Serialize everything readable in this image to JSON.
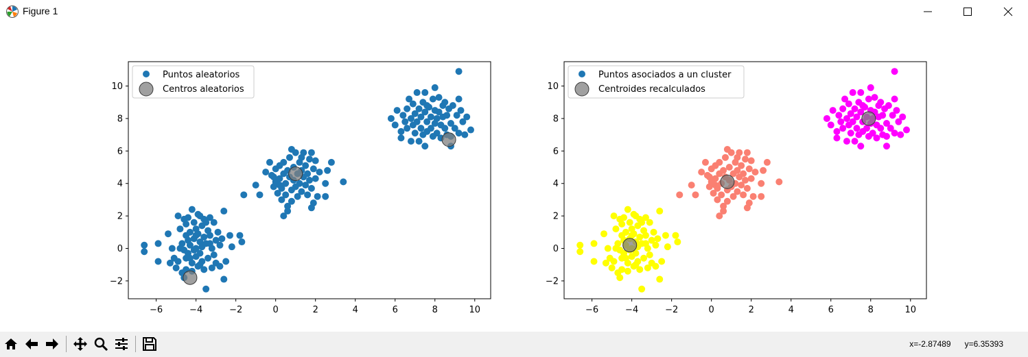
{
  "window": {
    "title": "Figure 1",
    "icons": {
      "app": "matplotlib-icon",
      "minimize": "minimize-icon",
      "maximize": "maximize-icon",
      "close": "close-icon"
    }
  },
  "toolbar": {
    "buttons": [
      "home-icon",
      "back-arrow-icon",
      "forward-arrow-icon",
      "pan-icon",
      "zoom-icon",
      "subplots-icon",
      "save-icon"
    ],
    "x_coord": "x=-2.87489",
    "y_coord": "y=6.35393"
  },
  "colors": {
    "scatter_default": "#1f77b4",
    "centers": "#808080",
    "cluster_a": "#ffff00",
    "cluster_b": "#fa8072",
    "cluster_c": "#ff00ff"
  },
  "chart_data": [
    {
      "type": "scatter",
      "title": "",
      "xlabel": "",
      "ylabel": "",
      "xlim": [
        -7.4,
        10.8
      ],
      "ylim": [
        -3.1,
        11.5
      ],
      "xticks": [
        -6,
        -4,
        -2,
        0,
        2,
        4,
        6,
        8,
        10
      ],
      "yticks": [
        -2,
        0,
        2,
        4,
        6,
        8,
        10
      ],
      "xtick_labels": [
        "−6",
        "−4",
        "−2",
        "0",
        "2",
        "4",
        "6",
        "8",
        "10"
      ],
      "ytick_labels": [
        "−2",
        "0",
        "2",
        "4",
        "6",
        "8",
        "10"
      ],
      "legend": {
        "placement": "upper-left",
        "entries": [
          "Puntos aleatorios",
          "Centros aleatorios"
        ]
      },
      "series": [
        {
          "name": "Puntos aleatorios",
          "color": "#1f77b4",
          "points": [
            [
              -6.6,
              0.2
            ],
            [
              -6.6,
              -0.2
            ],
            [
              -5.9,
              0.3
            ],
            [
              -5.9,
              -0.8
            ],
            [
              -5.4,
              0.9
            ],
            [
              -5.1,
              -0.6
            ],
            [
              -5.0,
              -1.2
            ],
            [
              -4.9,
              -0.8
            ],
            [
              -4.8,
              0.0
            ],
            [
              -4.7,
              0.3
            ],
            [
              -4.6,
              -0.1
            ],
            [
              -4.6,
              -1.8
            ],
            [
              -4.5,
              1.5
            ],
            [
              -4.5,
              0.8
            ],
            [
              -4.5,
              -0.6
            ],
            [
              -4.5,
              -1.3
            ],
            [
              -4.4,
              0.5
            ],
            [
              -4.4,
              -0.3
            ],
            [
              -4.3,
              1.0
            ],
            [
              -4.3,
              0.2
            ],
            [
              -4.2,
              2.4
            ],
            [
              -4.2,
              -0.9
            ],
            [
              -4.2,
              -1.4
            ],
            [
              -4.1,
              1.6
            ],
            [
              -4.1,
              0.6
            ],
            [
              -4.1,
              -0.1
            ],
            [
              -4.0,
              1.2
            ],
            [
              -4.0,
              0.0
            ],
            [
              -4.0,
              -0.5
            ],
            [
              -3.9,
              0.9
            ],
            [
              -3.9,
              -1.1
            ],
            [
              -3.8,
              2.0
            ],
            [
              -3.8,
              0.4
            ],
            [
              -3.8,
              -0.3
            ],
            [
              -3.7,
              1.4
            ],
            [
              -3.7,
              0.1
            ],
            [
              -3.7,
              -0.8
            ],
            [
              -3.6,
              1.8
            ],
            [
              -3.6,
              0.7
            ],
            [
              -3.6,
              -1.3
            ],
            [
              -3.5,
              0.3
            ],
            [
              -3.5,
              -2.5
            ],
            [
              -3.4,
              1.1
            ],
            [
              -3.4,
              -0.6
            ],
            [
              -3.3,
              1.9
            ],
            [
              -3.3,
              0.8
            ],
            [
              -3.2,
              0.0
            ],
            [
              -3.2,
              -1.2
            ],
            [
              -3.1,
              1.6
            ],
            [
              -3.1,
              -0.4
            ],
            [
              -3.0,
              0.5
            ],
            [
              -3.0,
              -0.9
            ],
            [
              -2.9,
              1.0
            ],
            [
              -2.8,
              0.2
            ],
            [
              -2.8,
              -1.1
            ],
            [
              -2.7,
              0.6
            ],
            [
              -2.6,
              2.3
            ],
            [
              -2.6,
              -1.9
            ],
            [
              -2.5,
              -0.8
            ],
            [
              -2.3,
              0.8
            ],
            [
              -2.2,
              0.1
            ],
            [
              -1.8,
              0.8
            ],
            [
              -1.7,
              0.4
            ],
            [
              -4.8,
              1.2
            ],
            [
              -4.9,
              2.0
            ],
            [
              -5.2,
              0.0
            ],
            [
              -5.3,
              -0.9
            ],
            [
              -4.7,
              -1.5
            ],
            [
              -4.6,
              1.8
            ],
            [
              -3.9,
              2.1
            ],
            [
              -3.5,
              1.6
            ],
            [
              -4.3,
              -0.6
            ],
            [
              -4.0,
              0.8
            ],
            [
              -3.8,
              -1.0
            ],
            [
              -3.3,
              0.3
            ],
            [
              -4.4,
              1.9
            ],
            [
              -1.6,
              3.3
            ],
            [
              -1.0,
              3.9
            ],
            [
              -0.8,
              3.3
            ],
            [
              -0.5,
              4.7
            ],
            [
              -0.3,
              5.3
            ],
            [
              -0.2,
              4.5
            ],
            [
              -0.1,
              3.8
            ],
            [
              0.0,
              4.9
            ],
            [
              0.0,
              4.1
            ],
            [
              0.1,
              3.4
            ],
            [
              0.2,
              5.1
            ],
            [
              0.2,
              4.3
            ],
            [
              0.3,
              3.7
            ],
            [
              0.3,
              3.0
            ],
            [
              0.4,
              5.3
            ],
            [
              0.4,
              4.6
            ],
            [
              0.4,
              2.0
            ],
            [
              0.5,
              4.0
            ],
            [
              0.5,
              3.3
            ],
            [
              0.6,
              4.8
            ],
            [
              0.6,
              2.6
            ],
            [
              0.7,
              5.6
            ],
            [
              0.7,
              4.4
            ],
            [
              0.8,
              6.1
            ],
            [
              0.8,
              3.6
            ],
            [
              0.8,
              2.9
            ],
            [
              0.9,
              5.0
            ],
            [
              0.9,
              4.2
            ],
            [
              1.0,
              5.9
            ],
            [
              1.0,
              3.8
            ],
            [
              1.1,
              4.6
            ],
            [
              1.1,
              3.2
            ],
            [
              1.2,
              5.3
            ],
            [
              1.2,
              4.0
            ],
            [
              1.3,
              4.8
            ],
            [
              1.3,
              3.5
            ],
            [
              1.4,
              5.9
            ],
            [
              1.4,
              4.4
            ],
            [
              1.5,
              5.1
            ],
            [
              1.5,
              3.9
            ],
            [
              1.6,
              4.6
            ],
            [
              1.6,
              3.3
            ],
            [
              1.7,
              5.5
            ],
            [
              1.7,
              4.2
            ],
            [
              1.8,
              5.9
            ],
            [
              1.8,
              3.7
            ],
            [
              1.9,
              4.9
            ],
            [
              1.9,
              2.8
            ],
            [
              2.0,
              5.4
            ],
            [
              2.0,
              4.3
            ],
            [
              2.1,
              3.2
            ],
            [
              2.2,
              4.7
            ],
            [
              2.5,
              4.0
            ],
            [
              2.5,
              3.2
            ],
            [
              2.6,
              4.8
            ],
            [
              2.8,
              5.3
            ],
            [
              3.4,
              4.1
            ],
            [
              1.8,
              2.5
            ],
            [
              0.6,
              2.3
            ],
            [
              -0.1,
              4.4
            ],
            [
              1.3,
              5.6
            ],
            [
              0.2,
              3.9
            ],
            [
              5.8,
              8.0
            ],
            [
              6.0,
              7.6
            ],
            [
              6.1,
              8.5
            ],
            [
              6.3,
              7.2
            ],
            [
              6.3,
              6.8
            ],
            [
              6.4,
              8.2
            ],
            [
              6.5,
              7.8
            ],
            [
              6.6,
              8.6
            ],
            [
              6.6,
              7.4
            ],
            [
              6.7,
              9.2
            ],
            [
              6.8,
              8.0
            ],
            [
              6.8,
              6.6
            ],
            [
              6.9,
              7.6
            ],
            [
              6.9,
              8.9
            ],
            [
              7.0,
              8.3
            ],
            [
              7.0,
              7.1
            ],
            [
              7.1,
              9.6
            ],
            [
              7.1,
              7.8
            ],
            [
              7.2,
              8.6
            ],
            [
              7.2,
              6.6
            ],
            [
              7.3,
              8.1
            ],
            [
              7.3,
              7.4
            ],
            [
              7.4,
              9.0
            ],
            [
              7.4,
              7.0
            ],
            [
              7.5,
              9.6
            ],
            [
              7.5,
              8.4
            ],
            [
              7.5,
              6.3
            ],
            [
              7.6,
              7.8
            ],
            [
              7.6,
              7.2
            ],
            [
              7.7,
              8.7
            ],
            [
              7.8,
              8.1
            ],
            [
              7.8,
              7.4
            ],
            [
              7.9,
              9.2
            ],
            [
              7.9,
              6.9
            ],
            [
              8.0,
              9.9
            ],
            [
              8.0,
              8.5
            ],
            [
              8.0,
              7.7
            ],
            [
              8.1,
              8.0
            ],
            [
              8.1,
              7.1
            ],
            [
              8.2,
              9.3
            ],
            [
              8.2,
              8.4
            ],
            [
              8.3,
              7.6
            ],
            [
              8.3,
              6.8
            ],
            [
              8.4,
              8.8
            ],
            [
              8.4,
              8.1
            ],
            [
              8.5,
              7.4
            ],
            [
              8.5,
              9.0
            ],
            [
              8.6,
              8.2
            ],
            [
              8.6,
              7.0
            ],
            [
              8.7,
              8.6
            ],
            [
              8.8,
              6.3
            ],
            [
              8.8,
              7.7
            ],
            [
              8.9,
              8.8
            ],
            [
              9.0,
              7.4
            ],
            [
              9.1,
              8.2
            ],
            [
              9.2,
              9.2
            ],
            [
              9.2,
              7.1
            ],
            [
              9.3,
              8.5
            ],
            [
              9.4,
              7.8
            ],
            [
              9.5,
              7.0
            ],
            [
              9.6,
              8.1
            ],
            [
              9.8,
              7.3
            ],
            [
              9.2,
              10.9
            ],
            [
              8.8,
              6.9
            ],
            [
              7.6,
              8.8
            ]
          ]
        },
        {
          "name": "Centros aleatorios",
          "color": "#808080",
          "points": [
            [
              -4.3,
              -1.8
            ],
            [
              1.0,
              4.6
            ],
            [
              8.7,
              6.7
            ]
          ]
        }
      ]
    },
    {
      "type": "scatter",
      "title": "",
      "xlabel": "",
      "ylabel": "",
      "xlim": [
        -7.4,
        10.8
      ],
      "ylim": [
        -3.1,
        11.5
      ],
      "xticks": [
        -6,
        -4,
        -2,
        0,
        2,
        4,
        6,
        8,
        10
      ],
      "yticks": [
        -2,
        0,
        2,
        4,
        6,
        8,
        10
      ],
      "xtick_labels": [
        "−6",
        "−4",
        "−2",
        "0",
        "2",
        "4",
        "6",
        "8",
        "10"
      ],
      "ytick_labels": [
        "−2",
        "0",
        "2",
        "4",
        "6",
        "8",
        "10"
      ],
      "legend": {
        "placement": "upper-left",
        "entries": [
          "Puntos asociados a un cluster",
          "Centroides recalculados"
        ]
      },
      "series": [
        {
          "name": "Puntos asociados a un cluster",
          "color": "#1f77b4",
          "clustered_like": 0
        },
        {
          "name": "Centroides recalculados",
          "color": "#808080",
          "points": [
            [
              -4.1,
              0.2
            ],
            [
              0.8,
              4.1
            ],
            [
              7.9,
              8.0
            ]
          ]
        }
      ]
    }
  ]
}
